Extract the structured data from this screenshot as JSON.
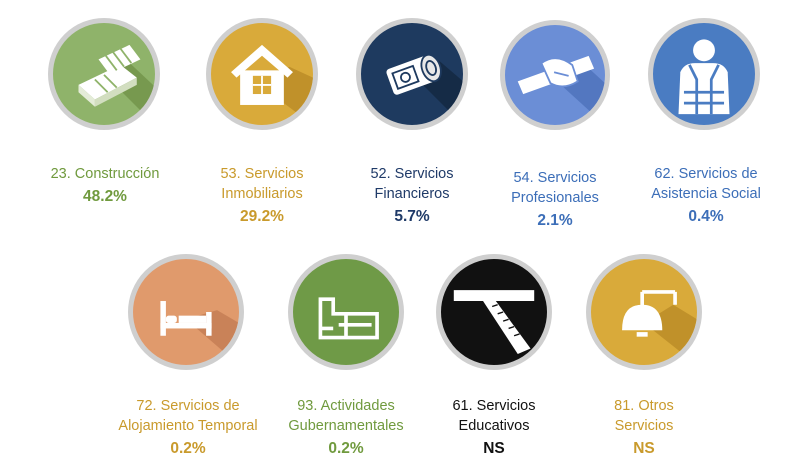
{
  "colors": {
    "green": "#709a3e",
    "gold": "#c99a2c",
    "navy": "#1f3a68",
    "blue": "#3c6eb8",
    "black": "#111111"
  },
  "sectors": [
    {
      "icon": "bricks-icon",
      "label_lines": [
        "23. Construcción"
      ],
      "value": "48.2%"
    },
    {
      "icon": "house-icon",
      "label_lines": [
        "53. Servicios",
        "Inmobiliarios"
      ],
      "value": "29.2%"
    },
    {
      "icon": "money-roll-icon",
      "label_lines": [
        "52. Servicios",
        "Financieros"
      ],
      "value": "5.7%"
    },
    {
      "icon": "hand-scroll-icon",
      "label_lines": [
        "54. Servicios",
        "Profesionales"
      ],
      "value": "2.1%"
    },
    {
      "icon": "vest-person-icon",
      "label_lines": [
        "62. Servicios de",
        "Asistencia Social"
      ],
      "value": "0.4%"
    },
    {
      "icon": "bed-icon",
      "label_lines": [
        "72. Servicios de",
        "Alojamiento Temporal"
      ],
      "value": "0.2%"
    },
    {
      "icon": "government-buildings-icon",
      "label_lines": [
        "93. Actividades",
        "Gubernamentales"
      ],
      "value": "0.2%"
    },
    {
      "icon": "t-square-ruler-icon",
      "label_lines": [
        "61. Servicios",
        "Educativos"
      ],
      "value": "NS"
    },
    {
      "icon": "lamp-icon",
      "label_lines": [
        "81. Otros",
        "Servicios"
      ],
      "value": "NS"
    }
  ]
}
